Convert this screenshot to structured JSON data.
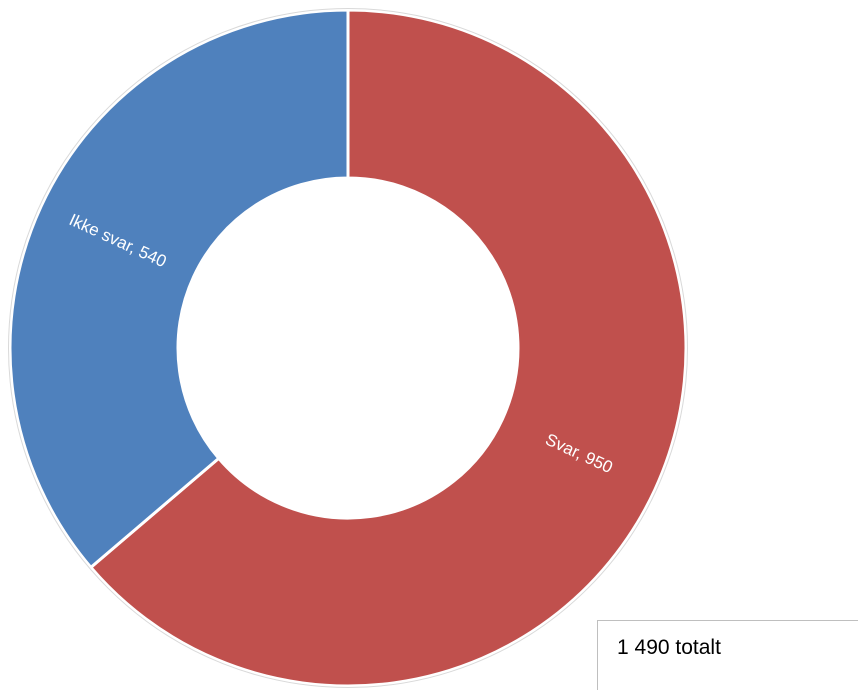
{
  "chart_data": {
    "type": "pie",
    "variant": "donut",
    "categories": [
      "Svar",
      "Ikke svar"
    ],
    "values": [
      950,
      540
    ],
    "colors": [
      "#C0504D",
      "#4F81BD"
    ],
    "data_labels": [
      "Svar,  950",
      "Ikke svar,  540"
    ],
    "label_color": "#FFFFFF",
    "start_angle_direction": "clockwise from top",
    "legend": "none"
  },
  "total_box": {
    "text": "1 490 totalt"
  }
}
